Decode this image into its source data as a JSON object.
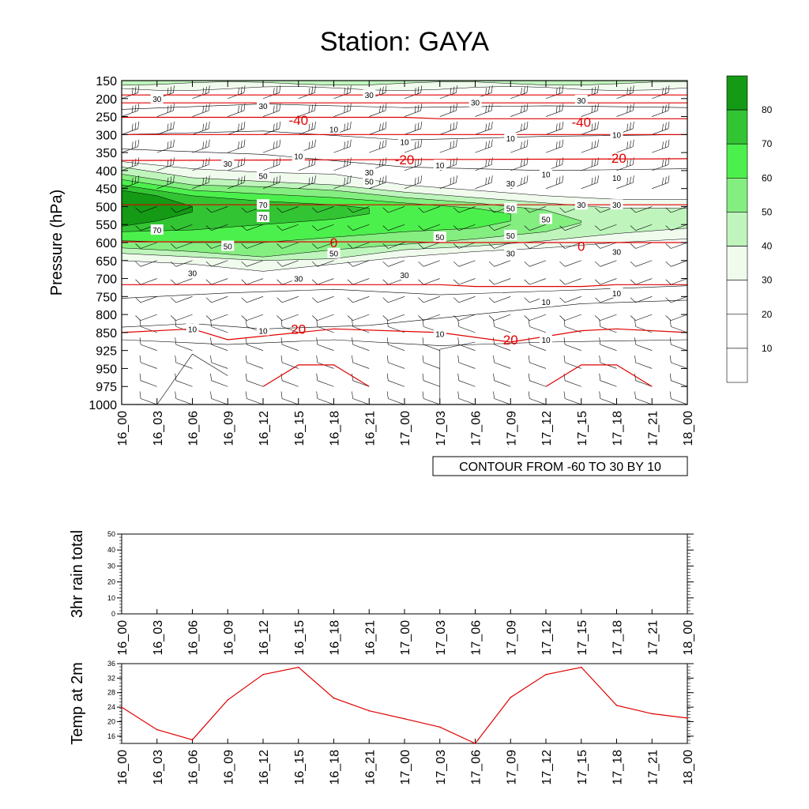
{
  "title": "Station: GAYA",
  "colors": {
    "temperature_contour": "#e00000",
    "rh_levels": [
      "#ffffff",
      "#ffffff",
      "#ffffff",
      "#f0fbee",
      "#bff5bc",
      "#85ee80",
      "#4cf04c",
      "#33c433",
      "#149a14"
    ],
    "axis": "#000000"
  },
  "time_labels": [
    "16_00",
    "16_03",
    "16_06",
    "16_09",
    "16_12",
    "16_15",
    "16_18",
    "16_21",
    "17_00",
    "17_03",
    "17_06",
    "17_09",
    "17_12",
    "17_15",
    "17_18",
    "17_21",
    "18_00"
  ],
  "chart_data": [
    {
      "type": "heatmap",
      "name": "cross-section",
      "ylabel": "Pressure (hPa)",
      "pressure_levels": [
        150,
        200,
        250,
        300,
        350,
        400,
        450,
        500,
        550,
        600,
        650,
        700,
        750,
        800,
        850,
        925,
        950,
        975,
        1000
      ],
      "relative_humidity_shading": {
        "levels": [
          10,
          20,
          30,
          40,
          50,
          60,
          70,
          80
        ],
        "columns_as_time": [
          "16_00",
          "16_03",
          "16_06",
          "16_09",
          "16_12",
          "16_15",
          "16_18",
          "16_21",
          "17_00",
          "17_03",
          "17_06",
          "17_09",
          "17_12",
          "17_15",
          "17_18",
          "17_21",
          "18_00"
        ],
        "contour_labels": [
          {
            "value": 30,
            "time": "16_03",
            "p": 200
          },
          {
            "value": 30,
            "time": "16_12",
            "p": 220
          },
          {
            "value": 30,
            "time": "16_21",
            "p": 190
          },
          {
            "value": 30,
            "time": "17_06",
            "p": 210
          },
          {
            "value": 30,
            "time": "17_15",
            "p": 205
          },
          {
            "value": 10,
            "time": "16_18",
            "p": 285
          },
          {
            "value": 10,
            "time": "17_00",
            "p": 320
          },
          {
            "value": 10,
            "time": "17_09",
            "p": 310
          },
          {
            "value": 10,
            "time": "17_18",
            "p": 300
          },
          {
            "value": 10,
            "time": "16_15",
            "p": 360
          },
          {
            "value": 10,
            "time": "17_03",
            "p": 385
          },
          {
            "value": 10,
            "time": "17_12",
            "p": 410
          },
          {
            "value": 10,
            "time": "17_18",
            "p": 420
          },
          {
            "value": 30,
            "time": "16_09",
            "p": 380
          },
          {
            "value": 30,
            "time": "16_21",
            "p": 405
          },
          {
            "value": 30,
            "time": "17_09",
            "p": 435
          },
          {
            "value": 30,
            "time": "17_15",
            "p": 495
          },
          {
            "value": 30,
            "time": "17_18",
            "p": 495
          },
          {
            "value": 50,
            "time": "16_12",
            "p": 415
          },
          {
            "value": 50,
            "time": "16_21",
            "p": 430
          },
          {
            "value": 70,
            "time": "16_12",
            "p": 495
          },
          {
            "value": 70,
            "time": "16_12",
            "p": 530
          },
          {
            "value": 70,
            "time": "16_03",
            "p": 565
          },
          {
            "value": 50,
            "time": "17_09",
            "p": 505
          },
          {
            "value": 50,
            "time": "17_12",
            "p": 535
          },
          {
            "value": 50,
            "time": "17_03",
            "p": 585
          },
          {
            "value": 50,
            "time": "17_09",
            "p": 580
          },
          {
            "value": 50,
            "time": "16_09",
            "p": 610
          },
          {
            "value": 50,
            "time": "16_18",
            "p": 630
          },
          {
            "value": 30,
            "time": "17_09",
            "p": 630
          },
          {
            "value": 30,
            "time": "17_18",
            "p": 625
          },
          {
            "value": 30,
            "time": "16_06",
            "p": 685
          },
          {
            "value": 30,
            "time": "16_15",
            "p": 700
          },
          {
            "value": 30,
            "time": "17_00",
            "p": 690
          },
          {
            "value": 10,
            "time": "17_12",
            "p": 765
          },
          {
            "value": 10,
            "time": "17_18",
            "p": 740
          },
          {
            "value": 10,
            "time": "16_06",
            "p": 840
          },
          {
            "value": 10,
            "time": "16_12",
            "p": 845
          },
          {
            "value": 10,
            "time": "17_03",
            "p": 855
          },
          {
            "value": 10,
            "time": "17_12",
            "p": 880
          }
        ]
      },
      "temperature_contours": {
        "labels": [
          {
            "value": -40,
            "time": "16_15",
            "p": 260
          },
          {
            "value": -40,
            "time": "17_15",
            "p": 265
          },
          {
            "value": -20,
            "time": "17_00",
            "p": 370
          },
          {
            "value": -20,
            "time": "17_18",
            "p": 365
          },
          {
            "value": 0,
            "time": "16_18",
            "p": 600
          },
          {
            "value": 0,
            "time": "17_15",
            "p": 610
          },
          {
            "value": 20,
            "time": "16_15",
            "p": 840
          },
          {
            "value": 20,
            "time": "17_09",
            "p": 880
          }
        ]
      },
      "footnote": "CONTOUR FROM -60 TO 30 BY 10"
    },
    {
      "type": "line",
      "name": "rain",
      "ylabel": "3hr rain total",
      "x": [
        "16_00",
        "16_03",
        "16_06",
        "16_09",
        "16_12",
        "16_15",
        "16_18",
        "16_21",
        "17_00",
        "17_03",
        "17_06",
        "17_09",
        "17_12",
        "17_15",
        "17_18",
        "17_21",
        "18_00"
      ],
      "values": [
        0,
        0,
        0,
        0,
        0,
        0,
        0,
        0,
        0,
        0,
        0,
        0,
        0,
        0,
        0,
        0,
        0
      ],
      "ylim": [
        0,
        50
      ],
      "yticks": [
        "0",
        "10",
        "20",
        "30",
        "40",
        "50"
      ]
    },
    {
      "type": "line",
      "name": "temperature",
      "ylabel": "Temp at 2m",
      "x": [
        "16_00",
        "16_03",
        "16_06",
        "16_09",
        "16_12",
        "16_15",
        "16_18",
        "16_21",
        "17_00",
        "17_03",
        "17_06",
        "17_09",
        "17_12",
        "17_15",
        "17_18",
        "17_21",
        "18_00"
      ],
      "values": [
        24.0,
        17.8,
        15.0,
        26.0,
        33.0,
        35.0,
        26.5,
        23.0,
        20.8,
        18.5,
        14.0,
        26.7,
        33.0,
        35.0,
        24.5,
        22.2,
        21.0
      ],
      "ylim": [
        14,
        36
      ],
      "yticks": [
        "16",
        "20",
        "24",
        "28",
        "32",
        "36"
      ]
    }
  ]
}
